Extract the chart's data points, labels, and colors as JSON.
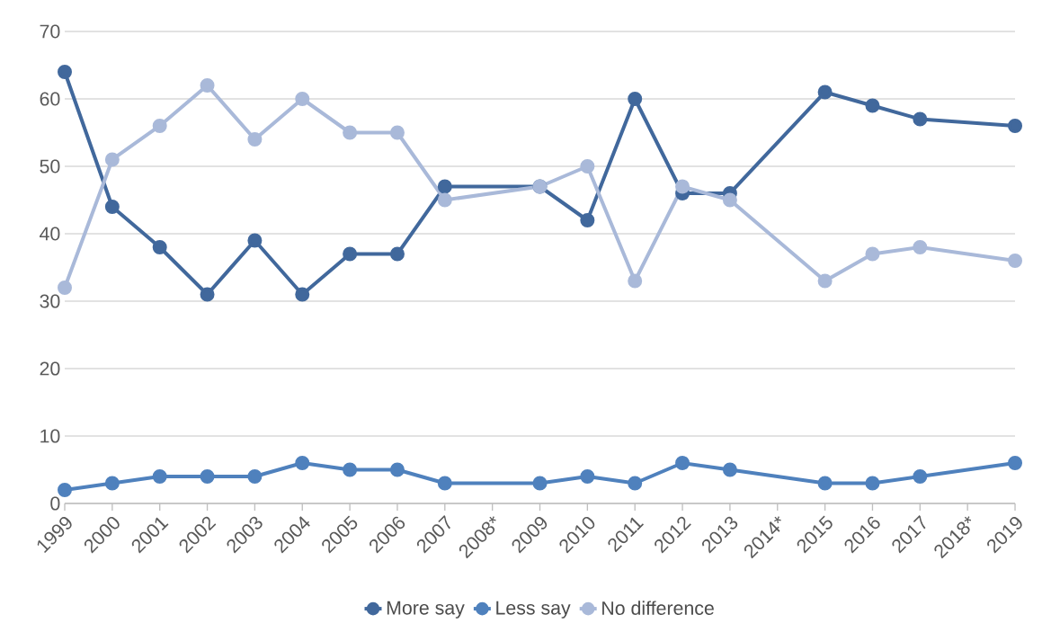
{
  "chart_data": {
    "type": "line",
    "categories": [
      "1999",
      "2000",
      "2001",
      "2002",
      "2003",
      "2004",
      "2005",
      "2006",
      "2007",
      "2008*",
      "2009",
      "2010",
      "2011",
      "2012",
      "2013",
      "2014*",
      "2015",
      "2016",
      "2017",
      "2018*",
      "2019"
    ],
    "series": [
      {
        "name": "More say",
        "color": "#41689c",
        "values": [
          64,
          44,
          38,
          31,
          39,
          31,
          37,
          37,
          47,
          null,
          47,
          42,
          60,
          46,
          46,
          null,
          61,
          59,
          57,
          null,
          56
        ]
      },
      {
        "name": "Less say",
        "color": "#4f81bd",
        "values": [
          2,
          3,
          4,
          4,
          4,
          6,
          5,
          5,
          3,
          null,
          3,
          4,
          3,
          6,
          5,
          null,
          3,
          3,
          4,
          null,
          6
        ]
      },
      {
        "name": "No difference",
        "color": "#a9b9d9",
        "values": [
          32,
          51,
          56,
          62,
          54,
          60,
          55,
          55,
          45,
          null,
          47,
          50,
          33,
          47,
          45,
          null,
          33,
          37,
          38,
          null,
          36
        ]
      }
    ],
    "ylim": [
      0,
      70
    ],
    "yticks": [
      0,
      10,
      20,
      30,
      40,
      50,
      60,
      70
    ],
    "grid": "y",
    "legend": "bottom",
    "marker": "circle",
    "line_style": "solid"
  }
}
